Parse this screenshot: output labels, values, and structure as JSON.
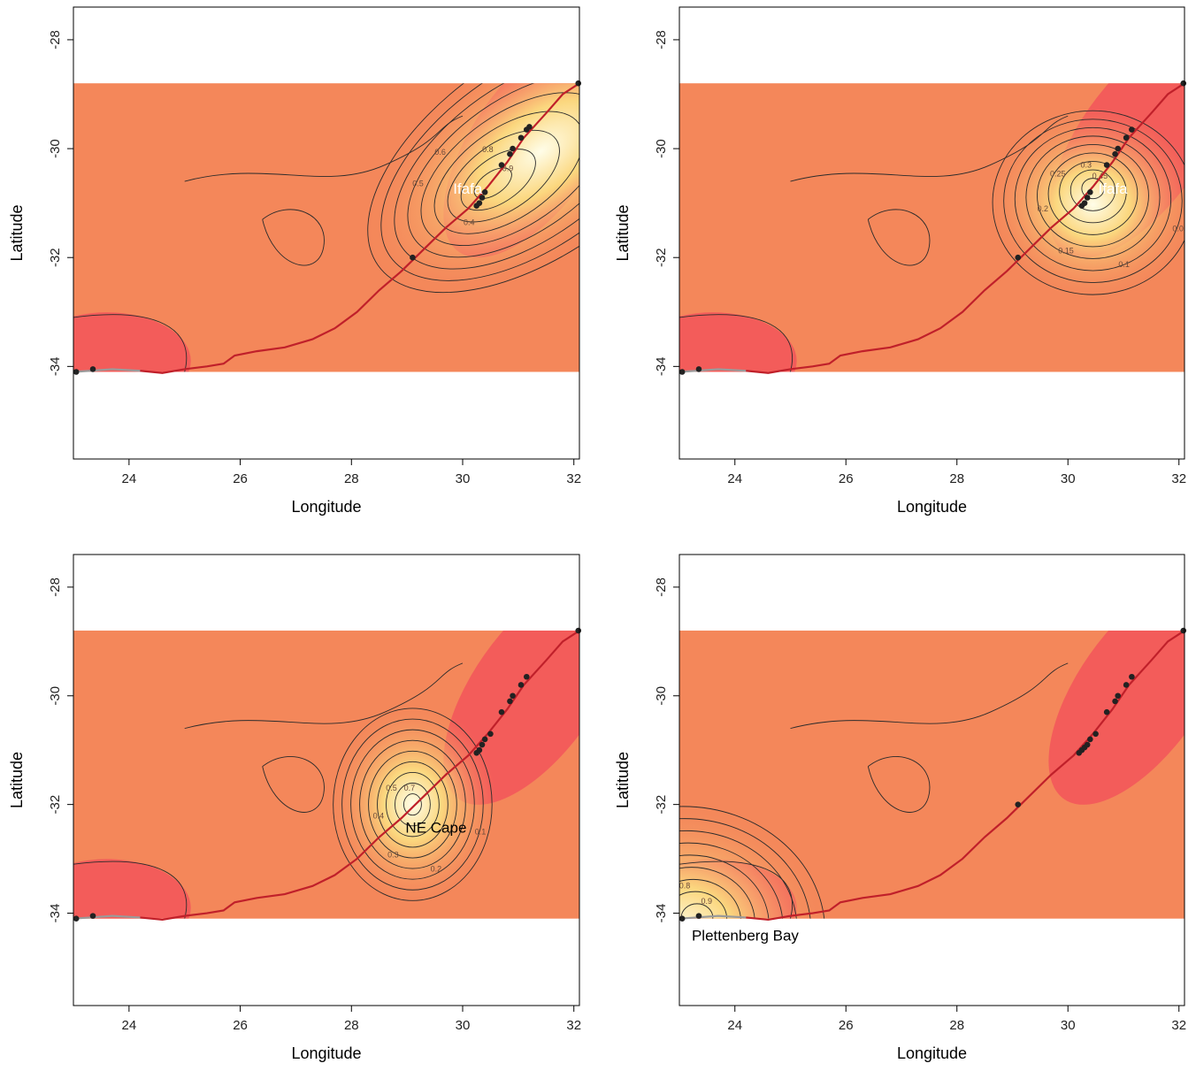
{
  "colors": {
    "panel_bg": "#ffffff",
    "field_low": "#f2555a",
    "field_mid": "#f4875a",
    "field_high": "#fbd77e",
    "field_peak": "#fffde8",
    "contour": "#2b2b2b",
    "coast_route": "#c0202a",
    "coast_grey": "#9a9a9a",
    "point": "#222222"
  },
  "chart_data": [
    {
      "type": "heatmap",
      "panel": "top-left",
      "xlabel": "Longitude",
      "ylabel": "Latitude",
      "xlim": [
        23,
        32.1
      ],
      "ylim": [
        -35.7,
        -27.4
      ],
      "xticks": [
        24,
        26,
        28,
        30,
        32
      ],
      "yticks": [
        -34,
        -32,
        -30,
        -28
      ],
      "field_extent": {
        "lon": [
          23,
          32.1
        ],
        "lat": [
          -34.1,
          -28.8
        ]
      },
      "focus": {
        "name": "Ifafa",
        "lon": 30.45,
        "lat": -30.7,
        "label_color": "#ffffff"
      },
      "contour_levels": [
        0.1,
        0.2,
        0.3,
        0.4,
        0.5,
        0.6,
        0.7,
        0.8,
        0.9
      ],
      "contour_labels": [
        "0.1",
        "0.2",
        "0.4",
        "0.5",
        "0.6",
        "0.8",
        "0.9"
      ],
      "points": [
        [
          23.05,
          -34.1
        ],
        [
          23.35,
          -34.05
        ],
        [
          29.1,
          -32.0
        ],
        [
          30.25,
          -31.05
        ],
        [
          30.3,
          -31.0
        ],
        [
          30.35,
          -30.9
        ],
        [
          30.4,
          -30.8
        ],
        [
          30.7,
          -30.3
        ],
        [
          30.85,
          -30.1
        ],
        [
          30.9,
          -30.0
        ],
        [
          31.05,
          -29.8
        ],
        [
          31.15,
          -29.65
        ],
        [
          31.2,
          -29.6
        ],
        [
          32.08,
          -28.8
        ]
      ]
    },
    {
      "type": "heatmap",
      "panel": "top-right",
      "xlabel": "Longitude",
      "ylabel": "Latitude",
      "xlim": [
        23,
        32.1
      ],
      "ylim": [
        -35.7,
        -27.4
      ],
      "xticks": [
        24,
        26,
        28,
        30,
        32
      ],
      "yticks": [
        -34,
        -32,
        -30,
        -28
      ],
      "field_extent": {
        "lon": [
          23,
          32.1
        ],
        "lat": [
          -34.1,
          -28.8
        ]
      },
      "focus": {
        "name": "Ifafa",
        "lon": 30.45,
        "lat": -30.7,
        "label_color": "#ffffff"
      },
      "contour_levels": [
        0.05,
        0.1,
        0.15,
        0.2,
        0.25,
        0.3,
        0.35,
        0.4,
        0.45
      ],
      "contour_labels": [
        "0.05",
        "0.1",
        "0.15",
        "0.2",
        "0.25",
        "0.3",
        "0.45"
      ],
      "points": [
        [
          23.05,
          -34.1
        ],
        [
          23.35,
          -34.05
        ],
        [
          29.1,
          -32.0
        ],
        [
          30.25,
          -31.05
        ],
        [
          30.3,
          -31.0
        ],
        [
          30.35,
          -30.9
        ],
        [
          30.4,
          -30.8
        ],
        [
          30.7,
          -30.3
        ],
        [
          30.85,
          -30.1
        ],
        [
          30.9,
          -30.0
        ],
        [
          31.05,
          -29.8
        ],
        [
          31.15,
          -29.65
        ],
        [
          32.08,
          -28.8
        ]
      ]
    },
    {
      "type": "heatmap",
      "panel": "bottom-left",
      "xlabel": "Longitude",
      "ylabel": "Latitude",
      "xlim": [
        23,
        32.1
      ],
      "ylim": [
        -35.7,
        -27.4
      ],
      "xticks": [
        24,
        26,
        28,
        30,
        32
      ],
      "yticks": [
        -34,
        -32,
        -30,
        -28
      ],
      "field_extent": {
        "lon": [
          23,
          32.1
        ],
        "lat": [
          -34.1,
          -28.8
        ]
      },
      "focus": {
        "name": "NE Cape",
        "lon": 29.1,
        "lat": -32.0,
        "label_color": "#000000"
      },
      "contour_levels": [
        0.1,
        0.2,
        0.3,
        0.4,
        0.5,
        0.6,
        0.7,
        0.8,
        0.9
      ],
      "contour_labels": [
        "0.1",
        "0.2",
        "0.3",
        "0.4",
        "0.5",
        "0.7"
      ],
      "points": [
        [
          23.05,
          -34.1
        ],
        [
          23.35,
          -34.05
        ],
        [
          30.25,
          -31.05
        ],
        [
          30.3,
          -31.0
        ],
        [
          30.35,
          -30.9
        ],
        [
          30.4,
          -30.8
        ],
        [
          30.5,
          -30.7
        ],
        [
          30.7,
          -30.3
        ],
        [
          30.85,
          -30.1
        ],
        [
          30.9,
          -30.0
        ],
        [
          31.05,
          -29.8
        ],
        [
          31.15,
          -29.65
        ],
        [
          32.08,
          -28.8
        ]
      ]
    },
    {
      "type": "heatmap",
      "panel": "bottom-right",
      "xlabel": "Longitude",
      "ylabel": "Latitude",
      "xlim": [
        23,
        32.1
      ],
      "ylim": [
        -35.7,
        -27.4
      ],
      "xticks": [
        24,
        26,
        28,
        30,
        32
      ],
      "yticks": [
        -34,
        -32,
        -30,
        -28
      ],
      "field_extent": {
        "lon": [
          23,
          32.1
        ],
        "lat": [
          -34.1,
          -28.8
        ]
      },
      "focus": {
        "name": "Plettenberg Bay",
        "lon": 23.35,
        "lat": -34.05,
        "label_color": "#000000"
      },
      "contour_levels": [
        0.1,
        0.2,
        0.3,
        0.4,
        0.5,
        0.6,
        0.7,
        0.8,
        0.9
      ],
      "contour_labels": [
        "0.1",
        "0.2",
        "0.4",
        "0.5",
        "0.6",
        "0.8",
        "0.9"
      ],
      "points": [
        [
          23.05,
          -34.1
        ],
        [
          23.35,
          -34.05
        ],
        [
          29.1,
          -32.0
        ],
        [
          30.2,
          -31.05
        ],
        [
          30.25,
          -31.0
        ],
        [
          30.3,
          -30.95
        ],
        [
          30.35,
          -30.9
        ],
        [
          30.4,
          -30.8
        ],
        [
          30.5,
          -30.7
        ],
        [
          30.7,
          -30.3
        ],
        [
          30.85,
          -30.1
        ],
        [
          30.9,
          -30.0
        ],
        [
          31.05,
          -29.8
        ],
        [
          31.15,
          -29.65
        ],
        [
          32.08,
          -28.8
        ]
      ]
    }
  ]
}
